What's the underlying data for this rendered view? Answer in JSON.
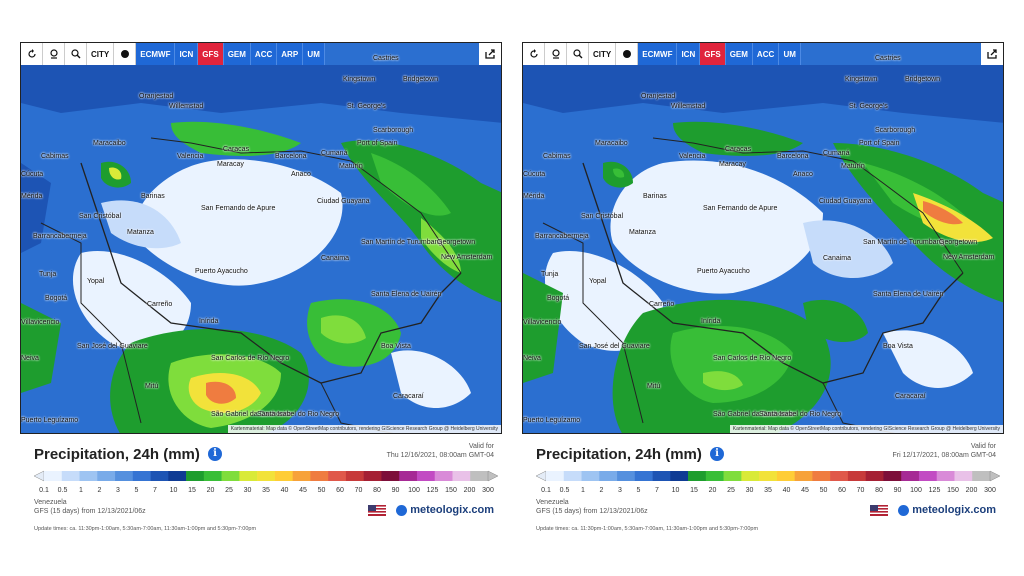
{
  "toolbar": {
    "icons": [
      "refresh-icon",
      "location-pin-icon",
      "zoom-icon",
      "city-toggle-icon",
      "dot-icon"
    ],
    "city_label": "CITY",
    "share_icon": "share-icon"
  },
  "legend_scale": {
    "values": [
      "0.1",
      "0.5",
      "1",
      "2",
      "3",
      "5",
      "7",
      "10",
      "15",
      "20",
      "25",
      "30",
      "35",
      "40",
      "45",
      "50",
      "60",
      "70",
      "80",
      "90",
      "100",
      "125",
      "150",
      "200",
      "300"
    ],
    "colors": [
      "#eaf3ff",
      "#c6dcfa",
      "#9ec4f2",
      "#79abe9",
      "#5590de",
      "#3574d3",
      "#1d54b4",
      "#0f3b94",
      "#1e9d2e",
      "#38be37",
      "#7fdd3c",
      "#d9ea38",
      "#f2e23a",
      "#ffcd36",
      "#f7a23a",
      "#ef7c40",
      "#e0584a",
      "#c73a3a",
      "#a52034",
      "#7d0f3a",
      "#a62a95",
      "#c24bc3",
      "#d98ad8",
      "#e9c1e8",
      "#bfbfbf"
    ]
  },
  "accent_color": "#1f68d6",
  "active_model_color": "#e0243c",
  "panels": [
    {
      "models": [
        "ECMWF",
        "ICN",
        "GFS",
        "GEM",
        "ACC",
        "ARP",
        "UM"
      ],
      "active_model": "GFS",
      "title": "Precipitation, 24h (mm)",
      "valid_label": "Valid for",
      "valid_time": "Thu 12/16/2021, 08:00am GMT-04",
      "region": "Venezuela",
      "run": "GFS (15 days) from 12/13/2021/06z",
      "update_times": "Update times: ca. 11:30pm-1:00am, 5:30am-7:00am, 11:30am-1:00pm and 5:30pm-7:00pm",
      "brand": "meteologix.com",
      "attribution": "Kartenmaterial: Map data © OpenStreetMap contributors, rendering GIScience Research Group @ Heidelberg University",
      "places": [
        "Castries",
        "Kingstown",
        "Bridgetown",
        "Oranjestad",
        "Willemstad",
        "St. George's",
        "Scarborough",
        "Port of Spain",
        "Maracaibo",
        "Caracas",
        "Valencia",
        "Maracay",
        "Barcelona",
        "Cumaná",
        "Maturín",
        "Anaco",
        "Cabimas",
        "Ciudad Guayana",
        "Barinas",
        "San Cristóbal",
        "Barrancabermeja",
        "Tunja",
        "Bogotá",
        "Yopal",
        "San Fernando de Apure",
        "Puerto Ayacucho",
        "Matanza",
        "San Martín de Turumbang",
        "Georgetown",
        "New Amsterdam",
        "Canaima",
        "Santa Elena de Uairén",
        "Inírida",
        "Carreño",
        "San José del Guaviare",
        "San Carlos de Río Negro",
        "Boa Vista",
        "Mitú",
        "Caracaraí",
        "São Gabriel da Cachoeira",
        "Santa Isabel do Rio Negro",
        "Villavicencio",
        "Cúcuta",
        "Mérida",
        "Puerto Leguízamo",
        "Neiva"
      ]
    },
    {
      "models": [
        "ECMWF",
        "ICN",
        "GFS",
        "GEM",
        "ACC",
        "UM"
      ],
      "active_model": "GFS",
      "title": "Precipitation, 24h (mm)",
      "valid_label": "Valid for",
      "valid_time": "Fri 12/17/2021, 08:00am GMT-04",
      "region": "Venezuela",
      "run": "GFS (15 days) from 12/13/2021/06z",
      "update_times": "Update times: ca. 11:30pm-1:00am, 5:30am-7:00am, 11:30am-1:00pm and 5:30pm-7:00pm",
      "brand": "meteologix.com",
      "attribution": "Kartenmaterial: Map data © OpenStreetMap contributors, rendering GIScience Research Group @ Heidelberg University",
      "places": [
        "Castries",
        "Kingstown",
        "Bridgetown",
        "Oranjestad",
        "Willemstad",
        "St. George's",
        "Scarborough",
        "Port of Spain",
        "Maracaibo",
        "Caracas",
        "Valencia",
        "Maracay",
        "Barcelona",
        "Cumaná",
        "Maturín",
        "Anaco",
        "Cabimas",
        "Ciudad Guayana",
        "Barinas",
        "San Cristóbal",
        "Barrancabermeja",
        "Tunja",
        "Bogotá",
        "Yopal",
        "San Fernando de Apure",
        "Puerto Ayacucho",
        "Matanza",
        "San Martín de Turumbang",
        "Georgetown",
        "New Amsterdam",
        "Canaima",
        "Santa Elena de Uairén",
        "Inírida",
        "Carreño",
        "San José del Guaviare",
        "San Carlos de Río Negro",
        "Boa Vista",
        "Mitú",
        "Caracaraí",
        "São Gabriel da Cachoeira",
        "Santa Isabel do Rio Negro",
        "Villavicencio",
        "Cúcuta",
        "Mérida",
        "Puerto Leguízamo",
        "Neiva"
      ]
    }
  ]
}
